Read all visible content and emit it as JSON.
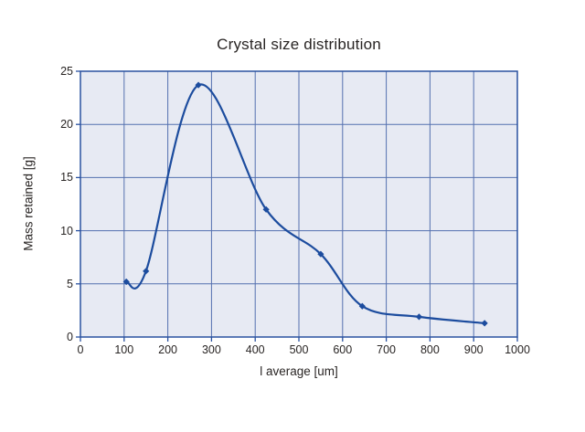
{
  "page": {
    "background": "#ffffff"
  },
  "chart_data": {
    "type": "line",
    "title": "Crystal size distribution",
    "xlabel": "l average [um]",
    "ylabel": "Mass retained [g]",
    "x": [
      105,
      150,
      270,
      425,
      550,
      645,
      775,
      925
    ],
    "y": [
      5.2,
      6.2,
      23.7,
      12.0,
      7.8,
      2.9,
      1.9,
      1.3
    ],
    "xlim": [
      0,
      1000
    ],
    "ylim": [
      0,
      25
    ],
    "xticks": [
      0,
      100,
      200,
      300,
      400,
      500,
      600,
      700,
      800,
      900,
      1000
    ],
    "yticks": [
      0,
      5,
      10,
      15,
      20,
      25
    ],
    "grid": true,
    "legend": false,
    "line_smooth": true,
    "marker": "diamond",
    "colors": {
      "line": "#1c4c9e",
      "marker": "#1c4c9e",
      "grid": "#5470af",
      "axis": "#2a52a0",
      "plot_bg": "#e7eaf3",
      "text": "#282423"
    }
  }
}
